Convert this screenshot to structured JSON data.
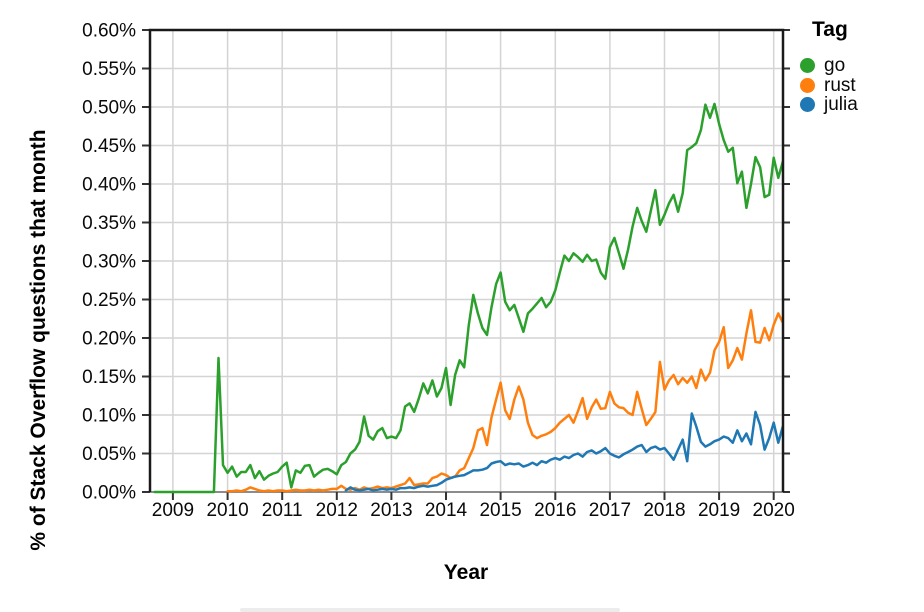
{
  "page": {
    "background": "#ffffff"
  },
  "chart_data": {
    "type": "line",
    "title": "",
    "xlabel": "Year",
    "ylabel": "% of Stack Overflow questions that month",
    "legend_title": "Tag",
    "legend_position": "top-right",
    "grid": true,
    "xlim": [
      2008.58,
      2020.17
    ],
    "ylim": [
      0,
      0.6
    ],
    "x_tick_values": [
      2009,
      2010,
      2011,
      2012,
      2013,
      2014,
      2015,
      2016,
      2017,
      2018,
      2019,
      2020
    ],
    "x_tick_labels": [
      "2009",
      "2010",
      "2011",
      "2012",
      "2013",
      "2014",
      "2015",
      "2016",
      "2017",
      "2018",
      "2019",
      "2020"
    ],
    "y_tick_values": [
      0,
      0.05,
      0.1,
      0.15,
      0.2,
      0.25,
      0.3,
      0.35,
      0.4,
      0.45,
      0.5,
      0.55,
      0.6
    ],
    "y_tick_labels": [
      "0.00%",
      "0.05%",
      "0.10%",
      "0.15%",
      "0.20%",
      "0.25%",
      "0.30%",
      "0.35%",
      "0.40%",
      "0.45%",
      "0.50%",
      "0.55%",
      "0.60%"
    ],
    "x_start_year": 2008,
    "x_start_month": 9,
    "x_step_months": 1,
    "series": [
      {
        "name": "go",
        "color": "#2ca02c",
        "values": [
          0,
          0,
          0,
          0,
          0,
          0,
          0,
          0,
          0,
          0,
          0,
          0,
          0,
          0,
          0.174,
          0.035,
          0.025,
          0.033,
          0.02,
          0.026,
          0.026,
          0.035,
          0.018,
          0.027,
          0.016,
          0.021,
          0.024,
          0.026,
          0.033,
          0.038,
          0.006,
          0.028,
          0.025,
          0.034,
          0.035,
          0.02,
          0.025,
          0.029,
          0.03,
          0.027,
          0.023,
          0.035,
          0.039,
          0.05,
          0.055,
          0.065,
          0.098,
          0.073,
          0.068,
          0.079,
          0.083,
          0.07,
          0.072,
          0.07,
          0.08,
          0.111,
          0.115,
          0.104,
          0.121,
          0.141,
          0.128,
          0.145,
          0.124,
          0.135,
          0.161,
          0.113,
          0.152,
          0.171,
          0.162,
          0.217,
          0.256,
          0.232,
          0.213,
          0.204,
          0.24,
          0.27,
          0.285,
          0.247,
          0.236,
          0.243,
          0.226,
          0.208,
          0.232,
          0.238,
          0.245,
          0.252,
          0.24,
          0.247,
          0.262,
          0.285,
          0.307,
          0.3,
          0.31,
          0.305,
          0.299,
          0.308,
          0.3,
          0.302,
          0.285,
          0.277,
          0.318,
          0.33,
          0.31,
          0.29,
          0.315,
          0.345,
          0.369,
          0.352,
          0.338,
          0.365,
          0.392,
          0.347,
          0.36,
          0.375,
          0.386,
          0.364,
          0.388,
          0.444,
          0.448,
          0.453,
          0.47,
          0.503,
          0.486,
          0.504,
          0.478,
          0.457,
          0.442,
          0.447,
          0.401,
          0.416,
          0.369,
          0.4,
          0.435,
          0.422,
          0.383,
          0.386,
          0.434,
          0.408,
          0.429
        ]
      },
      {
        "name": "rust",
        "color": "#ff7f0e",
        "values": [
          null,
          null,
          null,
          null,
          null,
          null,
          null,
          null,
          null,
          null,
          null,
          null,
          null,
          null,
          null,
          null,
          0.001,
          0.001,
          0.002,
          0.001,
          0.003,
          0.006,
          0.004,
          0.002,
          0.001,
          0.002,
          0.001,
          0.002,
          0.002,
          0.001,
          0.002,
          0.003,
          0.002,
          0.002,
          0.003,
          0.002,
          0.003,
          0.002,
          0.003,
          0.004,
          0.004,
          0.008,
          0.004,
          0.003,
          0.005,
          0.003,
          0.006,
          0.004,
          0.005,
          0.007,
          0.005,
          0.006,
          0.005,
          0.007,
          0.009,
          0.011,
          0.018,
          0.009,
          0.01,
          0.011,
          0.011,
          0.018,
          0.02,
          0.024,
          0.022,
          0.018,
          0.02,
          0.028,
          0.031,
          0.044,
          0.057,
          0.08,
          0.083,
          0.061,
          0.097,
          0.12,
          0.142,
          0.106,
          0.095,
          0.12,
          0.137,
          0.12,
          0.09,
          0.074,
          0.07,
          0.073,
          0.075,
          0.078,
          0.083,
          0.09,
          0.095,
          0.1,
          0.09,
          0.105,
          0.122,
          0.095,
          0.11,
          0.12,
          0.108,
          0.109,
          0.13,
          0.115,
          0.11,
          0.109,
          0.103,
          0.1,
          0.13,
          0.108,
          0.087,
          0.095,
          0.104,
          0.169,
          0.133,
          0.145,
          0.152,
          0.14,
          0.148,
          0.142,
          0.15,
          0.135,
          0.159,
          0.145,
          0.155,
          0.184,
          0.195,
          0.214,
          0.161,
          0.171,
          0.187,
          0.172,
          0.206,
          0.236,
          0.195,
          0.194,
          0.213,
          0.197,
          0.217,
          0.232,
          0.22
        ]
      },
      {
        "name": "julia",
        "color": "#1f77b4",
        "values": [
          null,
          null,
          null,
          null,
          null,
          null,
          null,
          null,
          null,
          null,
          null,
          null,
          null,
          null,
          null,
          null,
          null,
          null,
          null,
          null,
          null,
          null,
          null,
          null,
          null,
          null,
          null,
          null,
          null,
          null,
          null,
          null,
          null,
          null,
          null,
          null,
          null,
          null,
          null,
          null,
          null,
          null,
          0.002,
          0.006,
          0.003,
          0.002,
          0.003,
          0.004,
          0.002,
          0.003,
          0.004,
          0.003,
          0.004,
          0.003,
          0.005,
          0.005,
          0.006,
          0.005,
          0.007,
          0.008,
          0.007,
          0.008,
          0.009,
          0.012,
          0.016,
          0.018,
          0.02,
          0.021,
          0.022,
          0.025,
          0.028,
          0.028,
          0.029,
          0.031,
          0.037,
          0.039,
          0.04,
          0.035,
          0.037,
          0.036,
          0.037,
          0.033,
          0.035,
          0.038,
          0.035,
          0.04,
          0.038,
          0.042,
          0.044,
          0.042,
          0.046,
          0.044,
          0.048,
          0.05,
          0.046,
          0.052,
          0.054,
          0.05,
          0.053,
          0.057,
          0.05,
          0.047,
          0.045,
          0.049,
          0.052,
          0.055,
          0.059,
          0.061,
          0.052,
          0.057,
          0.059,
          0.055,
          0.057,
          0.05,
          0.042,
          0.055,
          0.068,
          0.04,
          0.102,
          0.085,
          0.065,
          0.059,
          0.062,
          0.066,
          0.068,
          0.072,
          0.07,
          0.064,
          0.08,
          0.066,
          0.076,
          0.062,
          0.104,
          0.087,
          0.055,
          0.07,
          0.09,
          0.064,
          0.085
        ]
      }
    ],
    "style": {
      "grid_color": "#d4d4d4",
      "border_color": "#1a1a1a",
      "bottom_axis_color": "#8c8c8c",
      "tick_color": "#333333",
      "line_width": 2.5
    }
  }
}
